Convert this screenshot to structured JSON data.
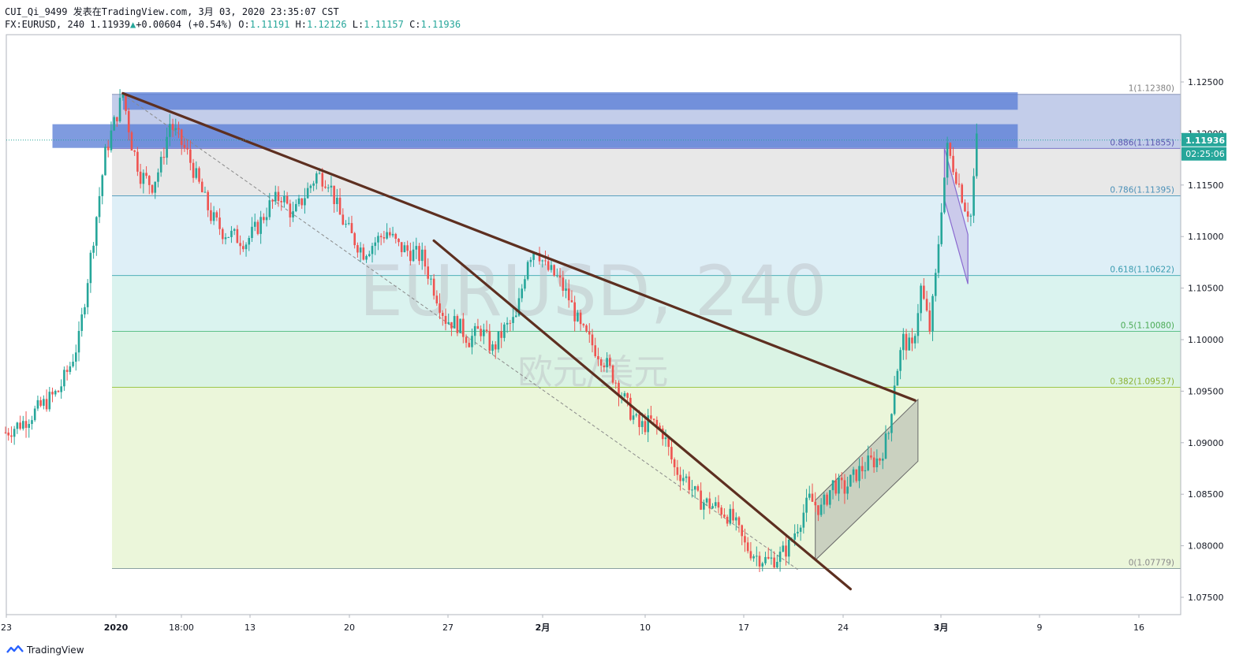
{
  "header": {
    "line1": "CUI_Qi_9499 发表在TradingView.com, 3月 03, 2020 23:35:07 CST",
    "symbol_tf": "FX:EURUSD, 240",
    "last": "1.11939",
    "change_arrow": "▲",
    "change": "+0.00604 (+0.54%)",
    "o_label": "O:",
    "o": "1.11191",
    "h_label": "H:",
    "h": "1.12126",
    "l_label": "L:",
    "l": "1.11157",
    "c_label": "C:",
    "c": "1.11936"
  },
  "watermark": {
    "main": "EURUSD, 240",
    "sub": "欧元/美元"
  },
  "footer": {
    "brand": "TradingView",
    "logo_icon": "tradingview-logo-icon"
  },
  "colors": {
    "up": "#26a69a",
    "down": "#ef5350",
    "trendline": "#5d2f20",
    "zone": "#5b7fd6",
    "axis_text": "#131722",
    "price_badge": "#26a69a"
  },
  "chart_data": {
    "type": "candlestick",
    "symbol": "EURUSD",
    "timeframe": "240",
    "ylim": [
      1.073,
      1.1285
    ],
    "y_ticks": [
      "1.12500",
      "1.12000",
      "1.11500",
      "1.11000",
      "1.10500",
      "1.10000",
      "1.09500",
      "1.09000",
      "1.08500",
      "1.08000",
      "1.07500"
    ],
    "x_ticks": [
      "23",
      "2020",
      "18:00",
      "13",
      "20",
      "27",
      "2月",
      "10",
      "17",
      "24",
      "3月",
      "9",
      "16"
    ],
    "current_price": "1.11936",
    "countdown": "02:25:06",
    "fib_levels": [
      {
        "ratio": "1",
        "price": 1.1238,
        "label": "1(1.12380)"
      },
      {
        "ratio": "0.886",
        "price": 1.11855,
        "label": "0.886(1.11855)"
      },
      {
        "ratio": "0.786",
        "price": 1.11395,
        "label": "0.786(1.11395)"
      },
      {
        "ratio": "0.618",
        "price": 1.10622,
        "label": "0.618(1.10622)"
      },
      {
        "ratio": "0.5",
        "price": 1.1008,
        "label": "0.5(1.10080)"
      },
      {
        "ratio": "0.382",
        "price": 1.09537,
        "label": "0.382(1.09537)"
      },
      {
        "ratio": "0",
        "price": 1.07779,
        "label": "0(1.07779)"
      }
    ],
    "path_close": [
      [
        0,
        1.091
      ],
      [
        6,
        1.092
      ],
      [
        12,
        1.0935
      ],
      [
        18,
        1.095
      ],
      [
        22,
        1.0975
      ],
      [
        25,
        1.1
      ],
      [
        28,
        1.106
      ],
      [
        31,
        1.112
      ],
      [
        34,
        1.118
      ],
      [
        37,
        1.121
      ],
      [
        40,
        1.1238
      ],
      [
        43,
        1.119
      ],
      [
        46,
        1.116
      ],
      [
        50,
        1.115
      ],
      [
        53,
        1.117
      ],
      [
        56,
        1.121
      ],
      [
        59,
        1.1195
      ],
      [
        62,
        1.118
      ],
      [
        66,
        1.115
      ],
      [
        70,
        1.112
      ],
      [
        74,
        1.1105
      ],
      [
        78,
        1.11
      ],
      [
        82,
        1.1095
      ],
      [
        86,
        1.111
      ],
      [
        90,
        1.113
      ],
      [
        94,
        1.114
      ],
      [
        98,
        1.112
      ],
      [
        102,
        1.114
      ],
      [
        106,
        1.116
      ],
      [
        110,
        1.1155
      ],
      [
        114,
        1.112
      ],
      [
        118,
        1.11
      ],
      [
        122,
        1.1085
      ],
      [
        126,
        1.1095
      ],
      [
        130,
        1.1105
      ],
      [
        134,
        1.109
      ],
      [
        138,
        1.1085
      ],
      [
        142,
        1.108
      ],
      [
        146,
        1.105
      ],
      [
        150,
        1.102
      ],
      [
        154,
        1.1015
      ],
      [
        158,
        1.1
      ],
      [
        162,
        1.101
      ],
      [
        166,
        1.099
      ],
      [
        170,
        1.101
      ],
      [
        174,
        1.102
      ],
      [
        178,
        1.108
      ],
      [
        181,
        1.109
      ],
      [
        184,
        1.107
      ],
      [
        188,
        1.106
      ],
      [
        192,
        1.104
      ],
      [
        196,
        1.101
      ],
      [
        200,
        1.0995
      ],
      [
        204,
        1.098
      ],
      [
        208,
        1.096
      ],
      [
        212,
        1.0935
      ],
      [
        216,
        1.0915
      ],
      [
        220,
        1.092
      ],
      [
        224,
        1.091
      ],
      [
        228,
        1.0875
      ],
      [
        232,
        1.0865
      ],
      [
        236,
        1.0845
      ],
      [
        240,
        1.084
      ],
      [
        244,
        1.0835
      ],
      [
        248,
        1.0825
      ],
      [
        252,
        1.08
      ],
      [
        256,
        1.079
      ],
      [
        260,
        1.0785
      ],
      [
        264,
        1.079
      ],
      [
        267,
        1.08
      ],
      [
        270,
        1.082
      ],
      [
        274,
        1.0845
      ],
      [
        278,
        1.0835
      ],
      [
        282,
        1.086
      ],
      [
        286,
        1.0855
      ],
      [
        290,
        1.087
      ],
      [
        294,
        1.088
      ],
      [
        298,
        1.0885
      ],
      [
        301,
        1.091
      ],
      [
        303,
        1.096
      ],
      [
        306,
        1.1
      ],
      [
        309,
        1.099
      ],
      [
        312,
        1.105
      ],
      [
        315,
        1.101
      ],
      [
        317,
        1.106
      ],
      [
        319,
        1.113
      ],
      [
        321,
        1.1185
      ],
      [
        324,
        1.116
      ],
      [
        327,
        1.113
      ],
      [
        329,
        1.112
      ],
      [
        331,
        1.1194
      ]
    ],
    "drawings": [
      {
        "type": "trendline",
        "from": [
          40,
          1.1239
        ],
        "to": [
          310,
          1.0941
        ]
      },
      {
        "type": "trendline",
        "from": [
          146,
          1.1096
        ],
        "to": [
          288,
          1.0758
        ]
      },
      {
        "type": "dashed_line",
        "from": [
          40,
          1.1238
        ],
        "to": [
          270,
          1.0777
        ]
      },
      {
        "type": "zone",
        "from_x": 40,
        "to_x": 345,
        "top": 1.124,
        "bottom": 1.1223
      },
      {
        "type": "zone",
        "from_x": 16,
        "to_x": 345,
        "top": 1.1209,
        "bottom": 1.1186
      },
      {
        "type": "channel",
        "points": [
          [
            276,
            1.0844
          ],
          [
            311,
            1.0942
          ],
          [
            311,
            1.0882
          ],
          [
            276,
            1.0786
          ]
        ]
      },
      {
        "type": "flag",
        "points": [
          [
            320,
            1.1186
          ],
          [
            328,
            1.1102
          ],
          [
            328,
            1.1054
          ],
          [
            320,
            1.1136
          ]
        ]
      }
    ]
  }
}
